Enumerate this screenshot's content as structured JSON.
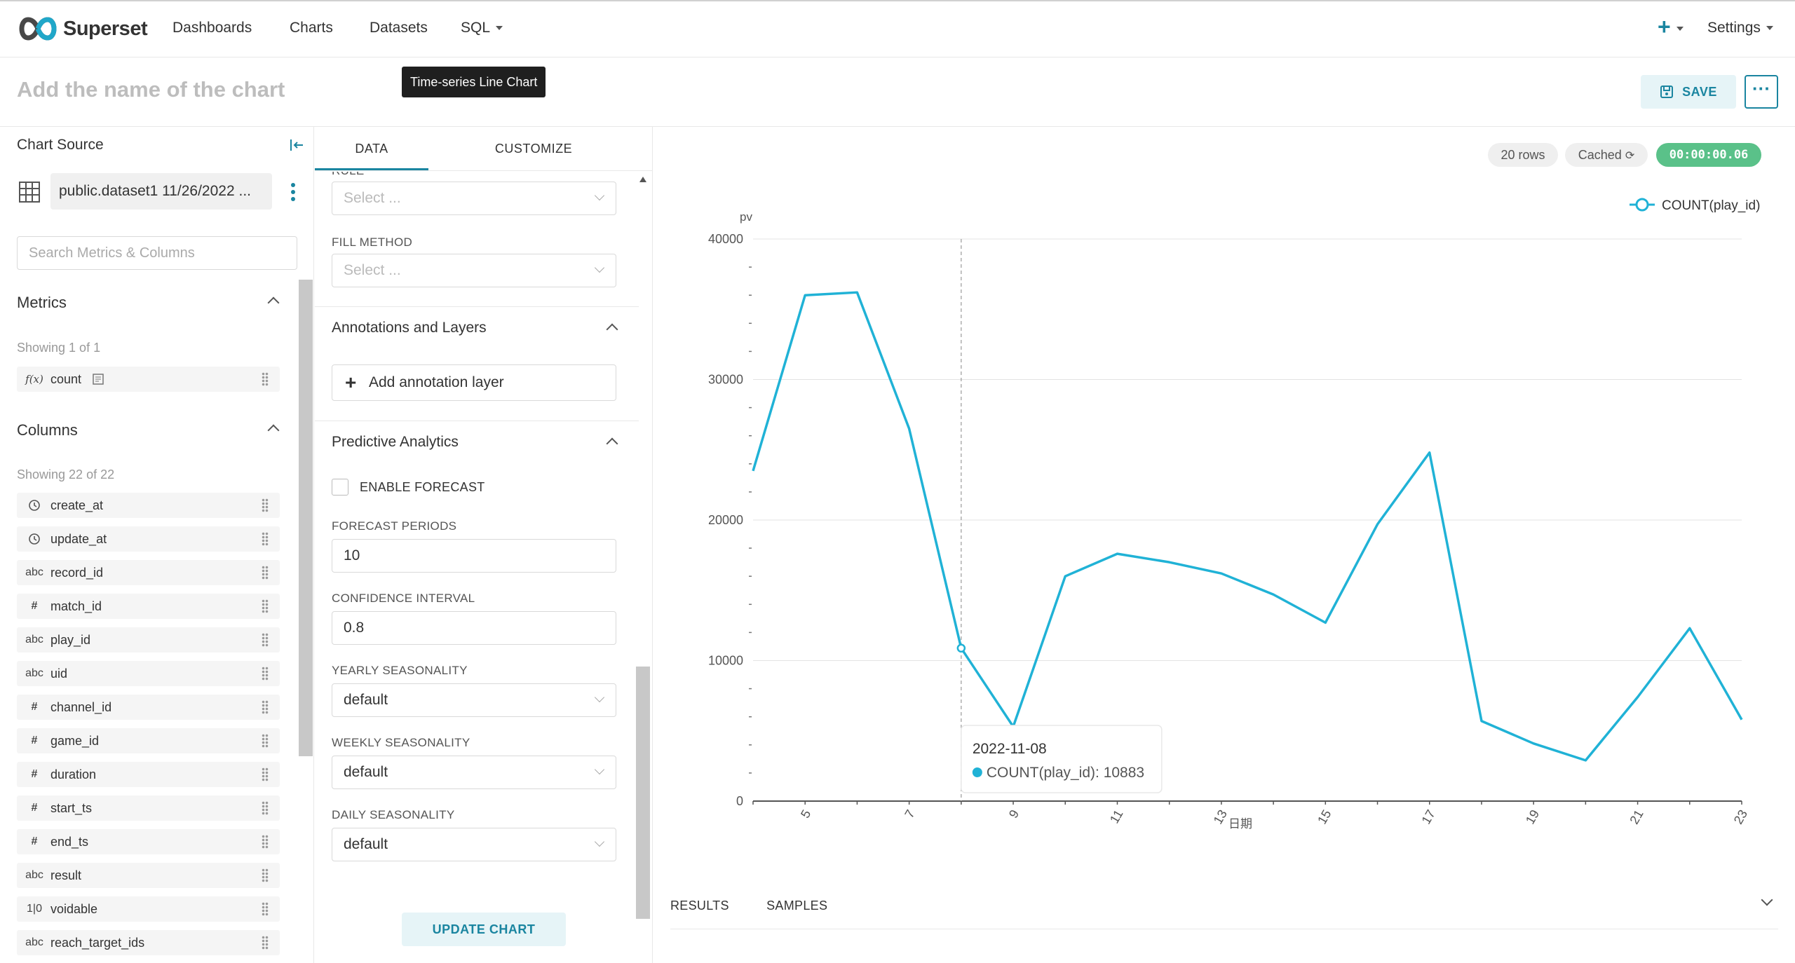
{
  "nav": {
    "brand": "Superset",
    "items": [
      "Dashboards",
      "Charts",
      "Datasets",
      "SQL"
    ],
    "plus": "+",
    "settings": "Settings"
  },
  "header": {
    "title_placeholder": "Add the name of the chart",
    "viz_type_tooltip": "Time-series Line Chart",
    "save_label": "SAVE",
    "more_label": "···"
  },
  "source": {
    "title": "Chart Source",
    "dataset": "public.dataset1 11/26/2022 ...",
    "search_placeholder": "Search Metrics & Columns"
  },
  "metrics": {
    "title": "Metrics",
    "showing": "Showing 1 of 1",
    "items": [
      {
        "type": "f(x)",
        "name": "count"
      }
    ]
  },
  "columns": {
    "title": "Columns",
    "showing": "Showing 22 of 22",
    "items": [
      {
        "type": "clock",
        "name": "create_at"
      },
      {
        "type": "clock",
        "name": "update_at"
      },
      {
        "type": "abc",
        "name": "record_id"
      },
      {
        "type": "#",
        "name": "match_id"
      },
      {
        "type": "abc",
        "name": "play_id"
      },
      {
        "type": "abc",
        "name": "uid"
      },
      {
        "type": "#",
        "name": "channel_id"
      },
      {
        "type": "#",
        "name": "game_id"
      },
      {
        "type": "#",
        "name": "duration"
      },
      {
        "type": "#",
        "name": "start_ts"
      },
      {
        "type": "#",
        "name": "end_ts"
      },
      {
        "type": "abc",
        "name": "result"
      },
      {
        "type": "1|0",
        "name": "voidable"
      },
      {
        "type": "abc",
        "name": "reach_target_ids"
      }
    ]
  },
  "tabs": {
    "data": "DATA",
    "customize": "CUSTOMIZE"
  },
  "controls": {
    "rule_label": "RULE",
    "rule_placeholder": "Select ...",
    "fill_method_label": "FILL METHOD",
    "fill_method_placeholder": "Select ...",
    "annotations_title": "Annotations and Layers",
    "add_annotation": "Add annotation layer",
    "predictive_title": "Predictive Analytics",
    "enable_forecast": "ENABLE FORECAST",
    "forecast_periods_label": "FORECAST PERIODS",
    "forecast_periods": "10",
    "confidence_label": "CONFIDENCE INTERVAL",
    "confidence": "0.8",
    "yearly_label": "YEARLY SEASONALITY",
    "yearly": "default",
    "weekly_label": "WEEKLY SEASONALITY",
    "weekly": "default",
    "daily_label": "DAILY SEASONALITY",
    "daily": "default",
    "update_chart": "UPDATE CHART"
  },
  "chart_meta": {
    "rows": "20 rows",
    "cached": "Cached",
    "timer": "00:00:00.06"
  },
  "chart_data": {
    "type": "line",
    "xlabel": "日期",
    "ylabel": "pv",
    "ylim": [
      0,
      40000
    ],
    "y_ticks": [
      0,
      10000,
      20000,
      30000,
      40000
    ],
    "x_tick_labels": [
      "5",
      "7",
      "9",
      "11",
      "13",
      "15",
      "17",
      "19",
      "21",
      "23"
    ],
    "series": [
      {
        "name": "COUNT(play_id)",
        "color": "#20b2d6",
        "x": [
          4,
          5,
          6,
          7,
          8,
          9,
          10,
          11,
          12,
          13,
          14,
          15,
          16,
          17,
          18,
          19,
          20,
          21,
          22,
          23
        ],
        "values": [
          23500,
          36000,
          36200,
          26500,
          10883,
          5300,
          16000,
          17600,
          17000,
          16200,
          14700,
          12700,
          19700,
          24800,
          5700,
          4100,
          2900,
          7400,
          12300,
          5800
        ]
      }
    ],
    "legend": "top-right",
    "grid": true,
    "tooltip": {
      "date": "2022-11-08",
      "label": "COUNT(play_id): 10883"
    }
  },
  "bottom": {
    "results": "RESULTS",
    "samples": "SAMPLES"
  }
}
